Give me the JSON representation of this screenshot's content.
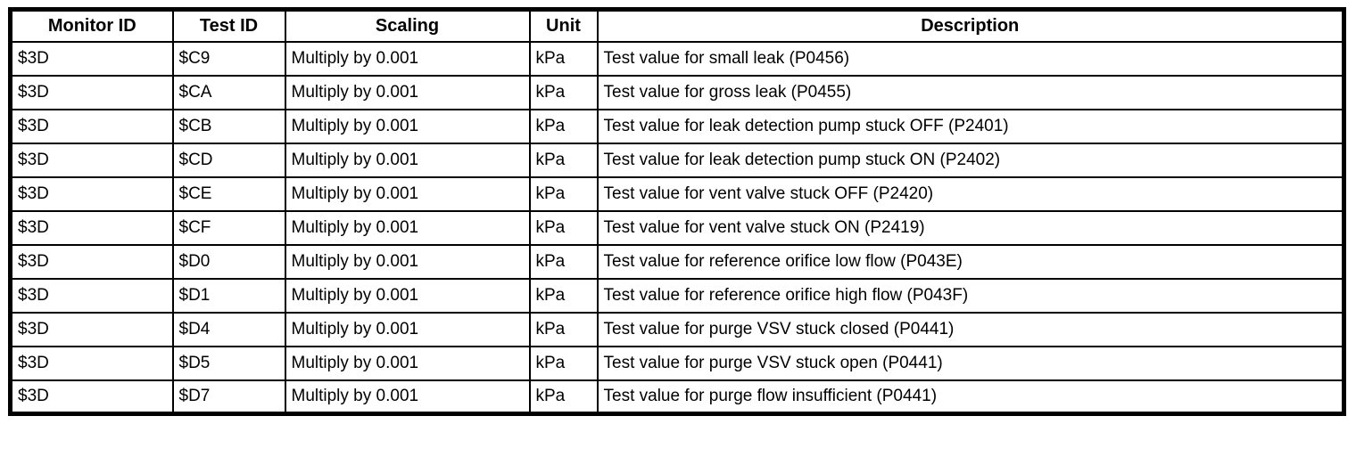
{
  "table": {
    "headers": [
      "Monitor ID",
      "Test ID",
      "Scaling",
      "Unit",
      "Description"
    ],
    "rows": [
      {
        "monitor_id": "$3D",
        "test_id": "$C9",
        "scaling": "Multiply by 0.001",
        "unit": "kPa",
        "description": "Test value for small leak (P0456)"
      },
      {
        "monitor_id": "$3D",
        "test_id": "$CA",
        "scaling": "Multiply by 0.001",
        "unit": "kPa",
        "description": "Test value for gross leak (P0455)"
      },
      {
        "monitor_id": "$3D",
        "test_id": "$CB",
        "scaling": "Multiply by 0.001",
        "unit": "kPa",
        "description": "Test value for leak detection pump stuck OFF (P2401)"
      },
      {
        "monitor_id": "$3D",
        "test_id": "$CD",
        "scaling": "Multiply by 0.001",
        "unit": "kPa",
        "description": "Test value for leak detection pump stuck ON (P2402)"
      },
      {
        "monitor_id": "$3D",
        "test_id": "$CE",
        "scaling": "Multiply by 0.001",
        "unit": "kPa",
        "description": "Test value for vent valve stuck OFF (P2420)"
      },
      {
        "monitor_id": "$3D",
        "test_id": "$CF",
        "scaling": "Multiply by 0.001",
        "unit": "kPa",
        "description": "Test value for vent valve stuck ON (P2419)"
      },
      {
        "monitor_id": "$3D",
        "test_id": "$D0",
        "scaling": "Multiply by 0.001",
        "unit": "kPa",
        "description": "Test value for reference orifice low flow (P043E)"
      },
      {
        "monitor_id": "$3D",
        "test_id": "$D1",
        "scaling": "Multiply by 0.001",
        "unit": "kPa",
        "description": "Test value for reference orifice high flow (P043F)"
      },
      {
        "monitor_id": "$3D",
        "test_id": "$D4",
        "scaling": "Multiply by 0.001",
        "unit": "kPa",
        "description": "Test value for purge VSV stuck closed (P0441)"
      },
      {
        "monitor_id": "$3D",
        "test_id": "$D5",
        "scaling": "Multiply by 0.001",
        "unit": "kPa",
        "description": "Test value for purge VSV stuck open (P0441)"
      },
      {
        "monitor_id": "$3D",
        "test_id": "$D7",
        "scaling": "Multiply by 0.001",
        "unit": "kPa",
        "description": "Test value for purge flow insufficient (P0441)"
      }
    ],
    "colors": {
      "border": "#000000",
      "background": "#ffffff",
      "text": "#000000"
    }
  }
}
